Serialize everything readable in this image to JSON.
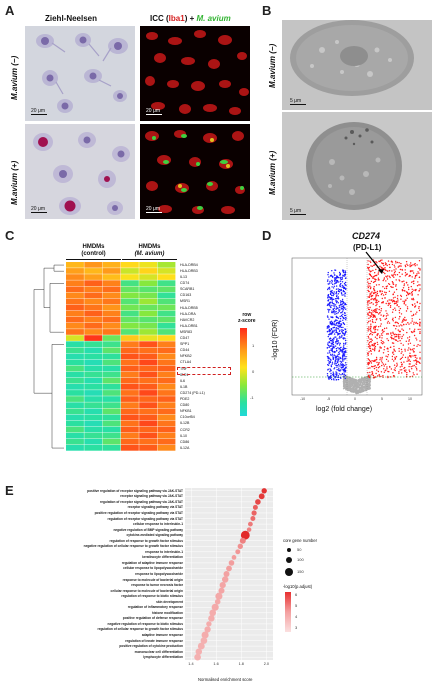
{
  "panels": {
    "a": "A",
    "b": "B",
    "c": "C",
    "d": "D",
    "e": "E"
  },
  "panel_a": {
    "col1_title": "Ziehl-Neelsen",
    "col2_title_prefix": "ICC (",
    "col2_title_iba1": "Iba1",
    "col2_title_mid": ") + ",
    "col2_title_mavium": "M. avium",
    "row1_label": "M.avium (−)",
    "row2_label": "M.avium (+)",
    "scale": "20 μm",
    "colors": {
      "iba1": "#d62020",
      "mavium": "#32b432"
    }
  },
  "panel_b": {
    "row1_label": "M.avium (−)",
    "row2_label": "M.avium (+)",
    "scale": "5 μm"
  },
  "panel_c": {
    "group1": [
      "HMDMs",
      "(control)"
    ],
    "group2": [
      "HMDMs",
      "(M. avium)"
    ],
    "legend_title": [
      "row",
      "z-score"
    ],
    "legend_ticks": [
      "1",
      "0",
      "-1"
    ],
    "genes": [
      "HLA-DRB4",
      "HLA-DRB3",
      "IL13",
      "CD74",
      "SCARB1",
      "CD163",
      "MSR1",
      "HLA-DRB5",
      "HLA-DRA",
      "HAVCR2",
      "HLA-DRB1",
      "MSR83",
      "CD47",
      "SPP1",
      "CD44",
      "NFKB2",
      "CTLA4",
      "TNF",
      "IDO1",
      "IL6",
      "IL1B",
      "CD274 (PD-L1)",
      "PDE2",
      "CD80",
      "NFKB1",
      "C10orf54",
      "IL12B",
      "CCR2",
      "IL10",
      "CD86",
      "IL12A"
    ],
    "highlight_gene": "CD274 (PD-L1)"
  },
  "panel_d": {
    "annotation_gene": "CD274",
    "annotation_sub": "(PD-L1)",
    "ylabel": "-log10 (FDR)",
    "xlabel": "log2 (fold change)",
    "x_ticks": [
      "-10",
      "-5",
      "0",
      "5",
      "10"
    ],
    "colors": {
      "down": "#1a1aff",
      "up": "#ff1a1a",
      "ns": "#b0b0b0",
      "threshold": "#2a9a2a"
    }
  },
  "panel_e": {
    "xlabel": "Normalised enrichment score",
    "x_ticks": [
      "1.4",
      "1.6",
      "1.8",
      "2.0"
    ],
    "size_legend_title": "core gene number",
    "size_legend": [
      "50",
      "100",
      "150"
    ],
    "color_legend_title": "-log10(p.adjust)",
    "color_legend_ticks": [
      "6",
      "5",
      "4",
      "3"
    ],
    "terms": [
      "positive regulation of receptor signaling pathway via JAK-STAT",
      "receptor signaling pathway via JAK-STAT",
      "regulation of receptor signaling pathway via JAK-STAT",
      "receptor signaling pathway via STAT",
      "positive regulation of receptor signaling pathway via STAT",
      "regulation of receptor signaling pathway via STAT",
      "cellular response to interleukin-1",
      "negative regulation of BMP signaling pathway",
      "cytokine-mediated signaling pathway",
      "regulation of response to growth factor stimulus",
      "negative regulation of cellular response to growth factor stimulus",
      "response to interleukin-1",
      "keratinocyte differentiation",
      "regulation of adaptive immune response",
      "cellular response to lipopolysaccharide",
      "response to lipopolysaccharide",
      "response to molecule of bacterial origin",
      "response to tumor necrosis factor",
      "cellular response to molecule of bacterial origin",
      "regulation of response to biotic stimulus",
      "skin development",
      "regulation of inflammatory response",
      "histone modification",
      "positive regulation of defense response",
      "negative regulation of response to biotic stimulus",
      "regulation of cellular response to growth factor stimulus",
      "adaptive immune response",
      "regulation of innate immune response",
      "positive regulation of cytokine production",
      "mononuclear cell differentiation",
      "lymphocyte differentiation"
    ]
  },
  "chart_data": {
    "type": "scatter",
    "xlabel": "Normalised enrichment score",
    "xlim": [
      1.35,
      2.05
    ],
    "categories": [
      "positive regulation of receptor signaling pathway via JAK-STAT",
      "receptor signaling pathway via JAK-STAT",
      "regulation of receptor signaling pathway via JAK-STAT",
      "receptor signaling pathway via STAT",
      "positive regulation of receptor signaling pathway via STAT",
      "regulation of receptor signaling pathway via STAT",
      "cellular response to interleukin-1",
      "negative regulation of BMP signaling pathway",
      "cytokine-mediated signaling pathway",
      "regulation of response to growth factor stimulus",
      "negative regulation of cellular response to growth factor stimulus",
      "response to interleukin-1",
      "keratinocyte differentiation",
      "regulation of adaptive immune response",
      "cellular response to lipopolysaccharide",
      "response to lipopolysaccharide",
      "response to molecule of bacterial origin",
      "response to tumor necrosis factor",
      "cellular response to molecule of bacterial origin",
      "regulation of response to biotic stimulus",
      "skin development",
      "regulation of inflammatory response",
      "histone modification",
      "positive regulation of defense response",
      "negative regulation of response to biotic stimulus",
      "regulation of cellular response to growth factor stimulus",
      "adaptive immune response",
      "regulation of innate immune response",
      "positive regulation of cytokine production",
      "mononuclear cell differentiation",
      "lymphocyte differentiation"
    ],
    "nes": [
      1.98,
      1.96,
      1.93,
      1.91,
      1.9,
      1.89,
      1.87,
      1.86,
      1.83,
      1.81,
      1.79,
      1.77,
      1.74,
      1.72,
      1.7,
      1.68,
      1.67,
      1.65,
      1.64,
      1.62,
      1.61,
      1.59,
      1.57,
      1.56,
      1.54,
      1.53,
      1.51,
      1.5,
      1.48,
      1.46,
      1.45
    ],
    "core_genes": [
      70,
      80,
      75,
      60,
      65,
      60,
      55,
      50,
      150,
      85,
      70,
      60,
      55,
      75,
      80,
      85,
      95,
      90,
      85,
      110,
      75,
      110,
      100,
      95,
      70,
      90,
      110,
      100,
      105,
      95,
      100
    ],
    "neg_log10_padj": [
      6.2,
      6.0,
      5.6,
      5.0,
      4.8,
      4.6,
      4.2,
      4.0,
      6.5,
      4.0,
      3.6,
      3.4,
      3.2,
      3.2,
      3.2,
      3.1,
      3.0,
      3.0,
      3.0,
      2.9,
      2.9,
      2.9,
      2.8,
      2.8,
      2.8,
      2.8,
      2.8,
      2.7,
      2.7,
      2.7,
      2.7
    ]
  }
}
